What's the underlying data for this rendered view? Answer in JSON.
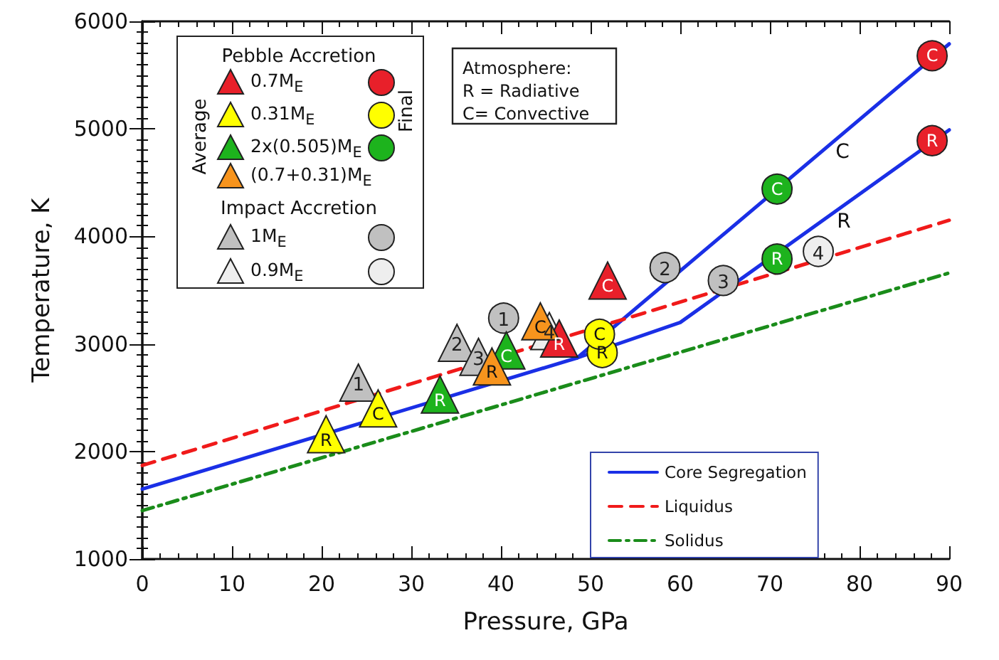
{
  "chart_data": {
    "type": "scatter",
    "xlabel": "Pressure, GPa",
    "ylabel": "Temperature, K",
    "xlim": [
      0,
      90
    ],
    "xticks": [
      0,
      10,
      20,
      30,
      40,
      50,
      60,
      70,
      80,
      90
    ],
    "ylim": [
      1000,
      6000
    ],
    "yticks": [
      1000,
      2000,
      3000,
      4000,
      5000,
      6000
    ],
    "legend": "bottom right",
    "series": [
      {
        "name": "Core Segregation",
        "type": "line",
        "color": "#1a2fe6",
        "line_style": "solid",
        "x": [
          0,
          48.5,
          60,
          90
        ],
        "values": [
          1650,
          2870,
          3200,
          4990
        ]
      },
      {
        "type": "line",
        "color": "#1a2fe6",
        "line_style": "solid",
        "x": [
          48.5,
          90
        ],
        "values": [
          2870,
          5790
        ]
      },
      {
        "name": "Liquidus",
        "type": "line",
        "color": "#f01a1a",
        "line_style": "dashed",
        "x": [
          0,
          90
        ],
        "values": [
          1870,
          4150
        ]
      },
      {
        "name": "Solidus",
        "type": "line",
        "color": "#1a8c1a",
        "line_style": "dashdot",
        "x": [
          0,
          90
        ],
        "values": [
          1450,
          3660
        ]
      },
      {
        "name": "0.7M$_{E}$",
        "marker": "triangle",
        "color": "#e8202a",
        "x": [
          46.5,
          51.9
        ],
        "values": [
          3050,
          3590
        ],
        "value_labels": [
          "R",
          "C"
        ]
      },
      {
        "name": "0.31M$_{E}$",
        "marker": "triangle",
        "color": "#ffff00",
        "x": [
          20.5,
          26.3
        ],
        "values": [
          2160,
          2400
        ],
        "value_labels": [
          "R",
          "C"
        ]
      },
      {
        "name": "2x(0.505)M$_{E}$",
        "marker": "triangle",
        "color": "#1db31d",
        "x": [
          33.2,
          40.6
        ],
        "values": [
          2530,
          2940
        ],
        "value_labels": [
          "R",
          "C"
        ]
      },
      {
        "name": "(0.7+0.31)M$_{E}$",
        "marker": "triangle",
        "color": "#f7941d",
        "x": [
          39.0,
          44.4
        ],
        "values": [
          2790,
          3210
        ],
        "value_labels": [
          "R",
          "C"
        ]
      },
      {
        "name": "1M$_{E}$",
        "marker": "triangle",
        "color": "#c0c0c0",
        "x": [
          24.1,
          35.1,
          37.5
        ],
        "values": [
          2640,
          3010,
          2880
        ]
      },
      {
        "name": "0.9M$_{E}$",
        "marker": "triangle",
        "color": "#eeeeee",
        "x": [
          45.4
        ],
        "values": [
          3120
        ]
      },
      {
        "marker": "circle",
        "color": "#c0c0c0",
        "x": [
          40.3,
          58.3,
          64.8
        ],
        "values": [
          3240,
          3710,
          3590
        ]
      },
      {
        "marker": "circle",
        "color": "#eeeeee",
        "x": [
          75.4
        ],
        "values": [
          3860
        ]
      },
      {
        "marker": "circle",
        "color": "#ffff00",
        "x": [
          51.3,
          51.0
        ],
        "values": [
          2920,
          3090
        ],
        "value_labels": [
          "R",
          "C"
        ]
      },
      {
        "marker": "circle",
        "color": "#1db31d",
        "x": [
          70.8,
          70.8
        ],
        "values": [
          3790,
          4440
        ],
        "value_labels": [
          "R",
          "C"
        ]
      },
      {
        "marker": "circle",
        "color": "#e8202a",
        "x": [
          88.1,
          88.1
        ],
        "values": [
          4890,
          5680
        ],
        "value_labels": [
          "R",
          "C"
        ]
      }
    ],
    "annotations": [
      "Pebble Accretion",
      "Average",
      "Final",
      "Impact Accretion",
      "Atmosphere:\nR = Radiative\nC= Convective",
      "C",
      "R",
      {
        "text": "1",
        "x": 24.1,
        "y": 2640
      },
      {
        "text": "2",
        "x": 35.1,
        "y": 3010
      },
      {
        "text": "3",
        "x": 37.5,
        "y": 2880
      },
      {
        "text": "4",
        "x": 45.4,
        "y": 3120
      },
      {
        "text": "1",
        "x": 40.3,
        "y": 3240
      },
      {
        "text": "2",
        "x": 58.3,
        "y": 3710
      },
      {
        "text": "3",
        "x": 64.8,
        "y": 3590
      },
      {
        "text": "4",
        "x": 75.4,
        "y": 3860
      }
    ]
  }
}
